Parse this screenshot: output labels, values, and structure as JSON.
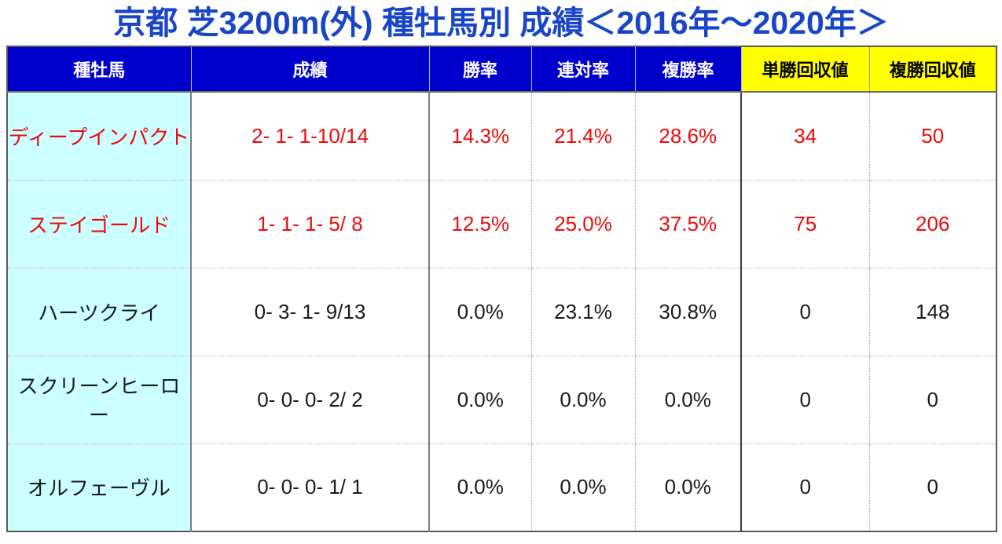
{
  "title": "京都 芝3200m(外) 種牡馬別 成績＜2016年～2020年＞",
  "colors": {
    "title_blue": "#1945C7",
    "header_blue": "#0000CC",
    "header_yellow": "#FFFF00",
    "sire_column_cyan": "#CCFFFF",
    "highlight_red": "#EE0A0A"
  },
  "chart_data": {
    "type": "table",
    "title": "京都 芝3200m(外) 種牡馬別 成績＜2016年～2020年＞",
    "columns": [
      "種牡馬",
      "成績",
      "勝率",
      "連対率",
      "複勝率",
      "単勝回収値",
      "複勝回収値"
    ],
    "column_header_styles": [
      "blue",
      "blue",
      "blue",
      "blue",
      "blue",
      "yellow",
      "yellow"
    ],
    "rows": [
      [
        "ディープインパクト",
        "2- 1- 1-10/14",
        "14.3%",
        "21.4%",
        "28.6%",
        "34",
        "50"
      ],
      [
        "ステイゴールド",
        "1- 1- 1- 5/ 8",
        "12.5%",
        "25.0%",
        "37.5%",
        "75",
        "206"
      ],
      [
        "ハーツクライ",
        "0- 3- 1- 9/13",
        "0.0%",
        "23.1%",
        "30.8%",
        "0",
        "148"
      ],
      [
        "スクリーンヒーロー",
        "0- 0- 0- 2/ 2",
        "0.0%",
        "0.0%",
        "0.0%",
        "0",
        "0"
      ],
      [
        "オルフェーヴル",
        "0- 0- 0- 1/ 1",
        "0.0%",
        "0.0%",
        "0.0%",
        "0",
        "0"
      ]
    ],
    "row_text_colors": [
      "red",
      "red",
      "black",
      "black",
      "black"
    ]
  }
}
